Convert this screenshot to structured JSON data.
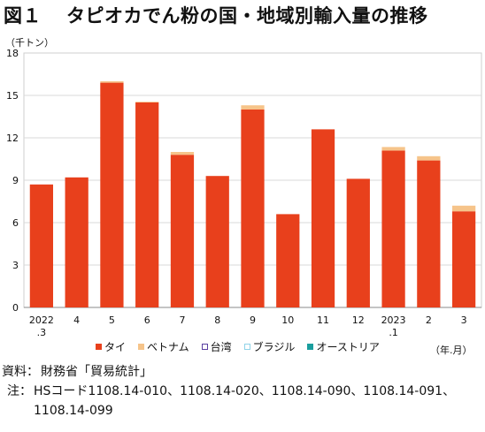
{
  "title": {
    "figure": "図１",
    "text": "タピオカでん粉の国・地域別輸入量の推移"
  },
  "unit_y": "（千トン）",
  "unit_x": "（年.月）",
  "chart_data": {
    "type": "bar",
    "stacked": true,
    "categories": [
      "2022\n.3",
      "4",
      "5",
      "6",
      "7",
      "8",
      "9",
      "10",
      "11",
      "12",
      "2023\n.1",
      "2",
      "3"
    ],
    "ylim": [
      0,
      18
    ],
    "yticks": [
      0,
      3,
      6,
      9,
      12,
      15,
      18
    ],
    "series": [
      {
        "name": "タイ",
        "color": "#e8401c",
        "values": [
          8.7,
          9.2,
          15.9,
          14.5,
          10.8,
          9.3,
          14.0,
          6.6,
          12.6,
          9.1,
          11.1,
          10.4,
          6.8
        ]
      },
      {
        "name": "ベトナム",
        "color": "#f6c48a",
        "values": [
          0,
          0,
          0.1,
          0.05,
          0.2,
          0,
          0.3,
          0,
          0,
          0,
          0.25,
          0.3,
          0.4
        ]
      },
      {
        "name": "台湾",
        "color": "#5a3fa0",
        "values": [
          0,
          0,
          0,
          0,
          0,
          0,
          0,
          0,
          0,
          0,
          0,
          0,
          0
        ]
      },
      {
        "name": "ブラジル",
        "color": "#8fd3e8",
        "values": [
          0,
          0,
          0,
          0,
          0,
          0,
          0,
          0,
          0,
          0,
          0,
          0,
          0
        ]
      },
      {
        "name": "オーストリア",
        "color": "#1a9e9e",
        "values": [
          0,
          0,
          0,
          0,
          0,
          0,
          0,
          0,
          0,
          0,
          0,
          0,
          0
        ]
      }
    ],
    "grid": true,
    "legend": "bottom"
  },
  "legend": [
    {
      "label": "タイ",
      "color": "#e8401c"
    },
    {
      "label": "ベトナム",
      "color": "#f6c48a"
    },
    {
      "label": "台湾",
      "color": "#5a3fa0"
    },
    {
      "label": "ブラジル",
      "color": "#8fd3e8"
    },
    {
      "label": "オーストリア",
      "color": "#1a9e9e"
    }
  ],
  "notes": {
    "source_label": "資料：",
    "source_text": "財務省「貿易統計」",
    "note_label": "注：",
    "note_line1": "HSコード1108.14-010、1108.14-020、1108.14-090、1108.14-091、",
    "note_line2": "1108.14-099"
  }
}
